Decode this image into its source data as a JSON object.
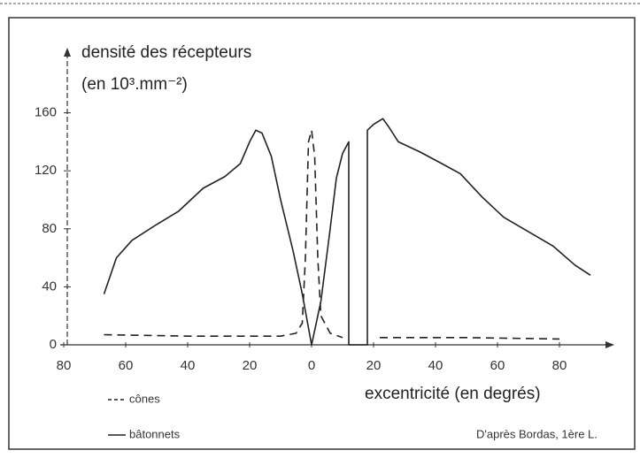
{
  "chart_data": {
    "type": "line",
    "ylabel": [
      "densité des récepteurs",
      "(en 10³.mm⁻²)"
    ],
    "xlabel": "excentricité (en degrés)",
    "source": "D'après Bordas, 1ère L.",
    "xlim": [
      -80,
      96
    ],
    "ylim": [
      0,
      200
    ],
    "xticks": [
      {
        "value": -80,
        "label": "80"
      },
      {
        "value": -60,
        "label": "60"
      },
      {
        "value": -40,
        "label": "40"
      },
      {
        "value": -20,
        "label": "20"
      },
      0,
      20,
      40,
      60,
      80
    ],
    "yticks": [
      0,
      40,
      80,
      120,
      160
    ],
    "series": [
      {
        "name": "cônes",
        "color": "#222222",
        "dashed": true,
        "x": [
          -67,
          -40,
          -10,
          -5,
          -3,
          -2,
          -1,
          0,
          1,
          2,
          3,
          6,
          10,
          null,
          22,
          50,
          80
        ],
        "values": [
          7,
          6,
          6,
          8,
          15,
          60,
          140,
          148,
          130,
          60,
          20,
          8,
          5,
          null,
          5,
          5,
          4
        ]
      },
      {
        "name": "bâtonnets",
        "color": "#222222",
        "dashed": false,
        "x": [
          -67,
          -63,
          -58,
          -50,
          -43,
          -35,
          -28,
          -23,
          -20,
          -18,
          -16,
          -13,
          -10,
          -6,
          -3,
          0,
          3,
          6,
          8,
          10,
          12,
          12,
          18,
          18,
          20,
          23,
          25,
          28,
          35,
          42,
          48,
          55,
          62,
          70,
          78,
          85,
          90
        ],
        "values": [
          35,
          60,
          72,
          83,
          92,
          108,
          116,
          125,
          140,
          148,
          146,
          130,
          100,
          65,
          35,
          0,
          30,
          80,
          115,
          132,
          140,
          0,
          0,
          148,
          152,
          156,
          150,
          140,
          133,
          125,
          118,
          102,
          88,
          78,
          68,
          55,
          48
        ]
      }
    ]
  }
}
